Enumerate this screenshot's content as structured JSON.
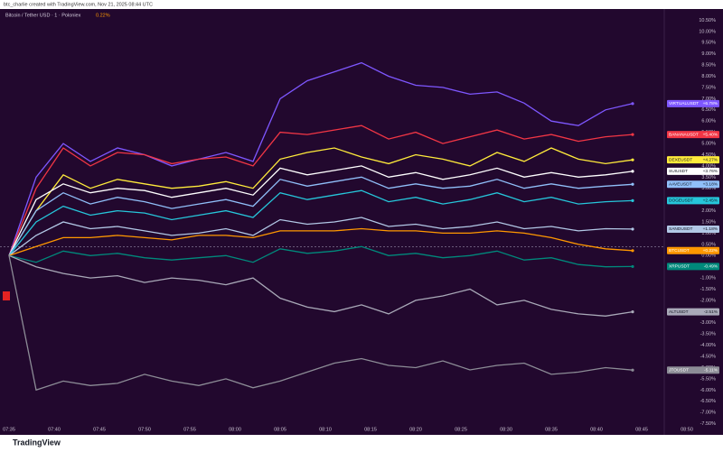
{
  "header": {
    "credit": "btc_charlie created with TradingView.com, Nov 21, 2025 08:44 UTC",
    "brand": "TradingView"
  },
  "chart_data": {
    "type": "line",
    "title": "Bitcoin / Tether USD · 1 · Poloniex",
    "subtitle": "0.22%",
    "x": [
      "07:35",
      "07:38",
      "07:41",
      "07:44",
      "07:47",
      "07:50",
      "07:53",
      "07:56",
      "07:59",
      "08:02",
      "08:05",
      "08:08",
      "08:11",
      "08:14",
      "08:17",
      "08:20",
      "08:23",
      "08:26",
      "08:29",
      "08:32",
      "08:35",
      "08:38",
      "08:41",
      "08:44"
    ],
    "xlim": [
      "07:34",
      "08:54"
    ],
    "xticks": [
      "07:35",
      "07:40",
      "07:45",
      "07:50",
      "07:55",
      "08:00",
      "08:05",
      "08:10",
      "08:15",
      "08:20",
      "08:25",
      "08:30",
      "08:35",
      "08:40",
      "08:45",
      "08:50"
    ],
    "ylim": [
      -8.0,
      11.0
    ],
    "yticks": [
      {
        "value": 10.5,
        "label": "10.50%"
      },
      {
        "value": 10,
        "label": "10.00%"
      },
      {
        "value": 9.5,
        "label": "9.50%"
      },
      {
        "value": 9,
        "label": "9.00%"
      },
      {
        "value": 8.5,
        "label": "8.50%"
      },
      {
        "value": 8,
        "label": "8.00%"
      },
      {
        "value": 7.5,
        "label": "7.50%"
      },
      {
        "value": 7,
        "label": "7.00%"
      },
      {
        "value": 6.5,
        "label": "6.50%"
      },
      {
        "value": 6,
        "label": "6.00%"
      },
      {
        "value": 5.5,
        "label": "5.50%"
      },
      {
        "value": 5,
        "label": "5.00%"
      },
      {
        "value": 4.5,
        "label": "4.50%"
      },
      {
        "value": 4,
        "label": "4.00%"
      },
      {
        "value": 3.5,
        "label": "3.50%"
      },
      {
        "value": 3,
        "label": "3.00%"
      },
      {
        "value": 2.5,
        "label": "2.50%"
      },
      {
        "value": 2,
        "label": "2.00%"
      },
      {
        "value": 1.5,
        "label": "1.50%"
      },
      {
        "value": 1,
        "label": "1.00%"
      },
      {
        "value": 0.5,
        "label": "0.50%"
      },
      {
        "value": 0,
        "label": "0.00%"
      },
      {
        "value": -0.5,
        "label": "-0.50%"
      },
      {
        "value": -1,
        "label": "-1.00%"
      },
      {
        "value": -1.5,
        "label": "-1.50%"
      },
      {
        "value": -2,
        "label": "-2.00%"
      },
      {
        "value": -2.5,
        "label": "-2.50%"
      },
      {
        "value": -3,
        "label": "-3.00%"
      },
      {
        "value": -3.5,
        "label": "-3.50%"
      },
      {
        "value": -4,
        "label": "-4.00%"
      },
      {
        "value": -4.5,
        "label": "-4.50%"
      },
      {
        "value": -5,
        "label": "-5.00%"
      },
      {
        "value": -5.5,
        "label": "-5.50%"
      },
      {
        "value": -6,
        "label": "-6.00%"
      },
      {
        "value": -6.5,
        "label": "-6.50%"
      },
      {
        "value": -7,
        "label": "-7.00%"
      },
      {
        "value": -7.5,
        "label": "-7.50%"
      }
    ],
    "grid": false,
    "series": [
      {
        "name": "VIRTUALUSDT",
        "color": "#7e57ff",
        "end_label": "+6.78%",
        "values": [
          0,
          3.5,
          5.0,
          4.2,
          4.8,
          4.5,
          4.0,
          4.3,
          4.6,
          4.2,
          7.0,
          7.8,
          8.2,
          8.6,
          8.0,
          7.6,
          7.5,
          7.2,
          7.3,
          6.8,
          6.0,
          5.8,
          6.5,
          6.78
        ]
      },
      {
        "name": "BANANAUSDT",
        "color": "#f23645",
        "end_label": "+5.40%",
        "values": [
          0,
          3.0,
          4.8,
          4.0,
          4.6,
          4.5,
          4.1,
          4.3,
          4.4,
          4.0,
          5.5,
          5.4,
          5.6,
          5.8,
          5.2,
          5.5,
          5.0,
          5.3,
          5.6,
          5.2,
          5.4,
          5.1,
          5.3,
          5.4
        ]
      },
      {
        "name": "DEXEUSDT",
        "color": "#ffeb3b",
        "end_label": "+4.27%",
        "values": [
          0,
          2.0,
          3.6,
          3.0,
          3.4,
          3.2,
          3.0,
          3.1,
          3.3,
          3.0,
          4.3,
          4.6,
          4.8,
          4.4,
          4.1,
          4.5,
          4.3,
          4.0,
          4.6,
          4.2,
          4.8,
          4.3,
          4.1,
          4.27
        ]
      },
      {
        "name": "SUIUSDT",
        "color": "#ffffff",
        "end_label": "+3.76%",
        "values": [
          0,
          2.5,
          3.2,
          2.8,
          3.0,
          2.9,
          2.6,
          2.8,
          3.0,
          2.7,
          3.9,
          3.6,
          3.8,
          4.0,
          3.5,
          3.7,
          3.4,
          3.6,
          3.9,
          3.5,
          3.7,
          3.5,
          3.6,
          3.76
        ]
      },
      {
        "name": "AAVEUSDT",
        "color": "#90bff9",
        "end_label": "+3.18%",
        "values": [
          0,
          2.0,
          2.8,
          2.3,
          2.6,
          2.4,
          2.1,
          2.3,
          2.5,
          2.2,
          3.4,
          3.1,
          3.3,
          3.5,
          3.0,
          3.2,
          3.0,
          3.1,
          3.4,
          3.0,
          3.2,
          3.0,
          3.1,
          3.18
        ]
      },
      {
        "name": "DOGEUSDT",
        "color": "#26c6da",
        "end_label": "+2.45%",
        "values": [
          0,
          1.5,
          2.2,
          1.8,
          2.0,
          1.9,
          1.6,
          1.8,
          2.0,
          1.7,
          2.8,
          2.5,
          2.7,
          2.9,
          2.4,
          2.6,
          2.3,
          2.5,
          2.8,
          2.4,
          2.6,
          2.3,
          2.4,
          2.45
        ]
      },
      {
        "name": "SANDUSDT",
        "color": "#b2c8e6",
        "end_label": "+1.18%",
        "values": [
          0,
          0.9,
          1.5,
          1.2,
          1.3,
          1.1,
          0.9,
          1.0,
          1.2,
          0.9,
          1.6,
          1.4,
          1.5,
          1.7,
          1.3,
          1.4,
          1.2,
          1.3,
          1.5,
          1.2,
          1.3,
          1.1,
          1.2,
          1.18
        ]
      },
      {
        "name": "BTCUSDT",
        "color": "#ff9800",
        "end_label": "+0.22%",
        "values": [
          0,
          0.4,
          0.8,
          0.8,
          0.9,
          0.8,
          0.7,
          0.9,
          0.9,
          0.8,
          1.1,
          1.1,
          1.1,
          1.2,
          1.1,
          1.1,
          1.0,
          1.0,
          1.1,
          1.0,
          0.8,
          0.5,
          0.3,
          0.22
        ]
      },
      {
        "name": "XRPUSDT",
        "color": "#00897b",
        "end_label": "-0.49%",
        "values": [
          0,
          -0.3,
          0.2,
          0.0,
          0.1,
          -0.1,
          -0.2,
          -0.1,
          0.0,
          -0.3,
          0.3,
          0.1,
          0.2,
          0.4,
          0.0,
          0.1,
          -0.1,
          0.0,
          0.2,
          -0.2,
          -0.1,
          -0.4,
          -0.5,
          -0.49
        ]
      },
      {
        "name": "ALTUSDT",
        "color": "#a9a9b8",
        "end_label": "-2.51%",
        "values": [
          0,
          -0.5,
          -0.8,
          -1.0,
          -0.9,
          -1.2,
          -1.0,
          -1.1,
          -1.3,
          -1.0,
          -1.9,
          -2.3,
          -2.5,
          -2.2,
          -2.6,
          -2.0,
          -1.8,
          -1.5,
          -2.2,
          -2.0,
          -2.4,
          -2.6,
          -2.7,
          -2.51
        ]
      },
      {
        "name": "JTOUSDT",
        "color": "#8c8c96",
        "end_label": "-5.11%",
        "values": [
          0,
          -6.0,
          -5.6,
          -5.8,
          -5.7,
          -5.3,
          -5.6,
          -5.8,
          -5.5,
          -5.9,
          -5.6,
          -5.2,
          -4.8,
          -4.6,
          -4.9,
          -5.0,
          -4.7,
          -5.1,
          -4.9,
          -4.8,
          -5.3,
          -5.2,
          -5.0,
          -5.11
        ]
      }
    ]
  }
}
